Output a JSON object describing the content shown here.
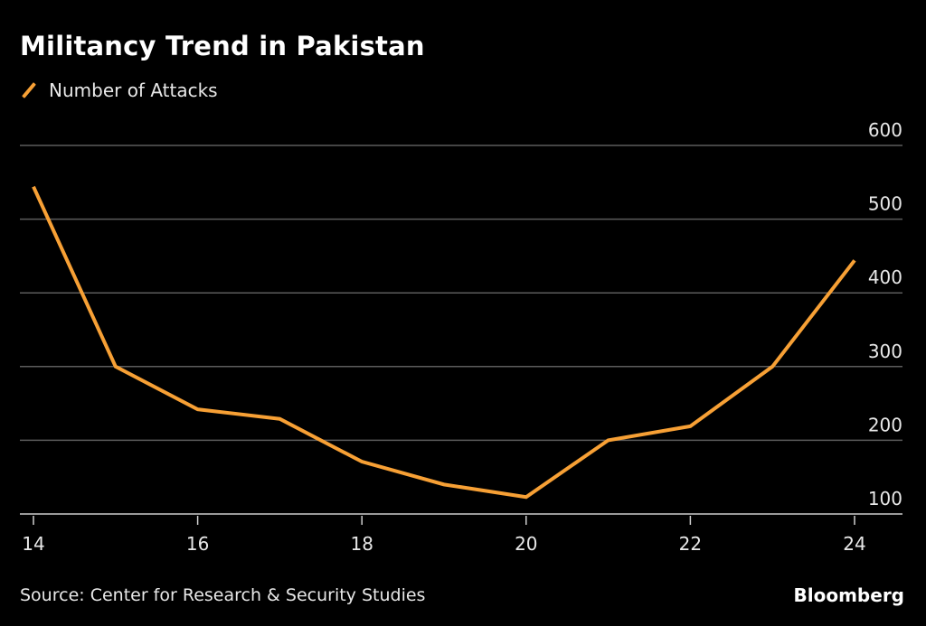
{
  "chart_data": {
    "type": "line",
    "title": "Militancy Trend in Pakistan",
    "series": [
      {
        "name": "Number of Attacks",
        "color": "#f7a035",
        "x": [
          2014,
          2015,
          2016,
          2017,
          2018,
          2019,
          2020,
          2021,
          2022,
          2023,
          2024
        ],
        "values": [
          544,
          300,
          242,
          229,
          171,
          140,
          123,
          200,
          219,
          300,
          444
        ]
      }
    ],
    "x_ticks": [
      14,
      16,
      18,
      20,
      22,
      24
    ],
    "x_tick_labels": [
      "14",
      "16",
      "18",
      "20",
      "22",
      "24"
    ],
    "y_ticks": [
      100,
      200,
      300,
      400,
      500,
      600
    ],
    "y_tick_labels": [
      "100",
      "200",
      "300",
      "400",
      "500",
      "600"
    ],
    "xlim": [
      2014,
      2024
    ],
    "ylim": [
      100,
      600
    ],
    "grid": true,
    "y_axis_side": "right",
    "legend_placement": "top-left"
  },
  "source": "Source: Center for Research & Security Studies",
  "logo": "Bloomberg"
}
